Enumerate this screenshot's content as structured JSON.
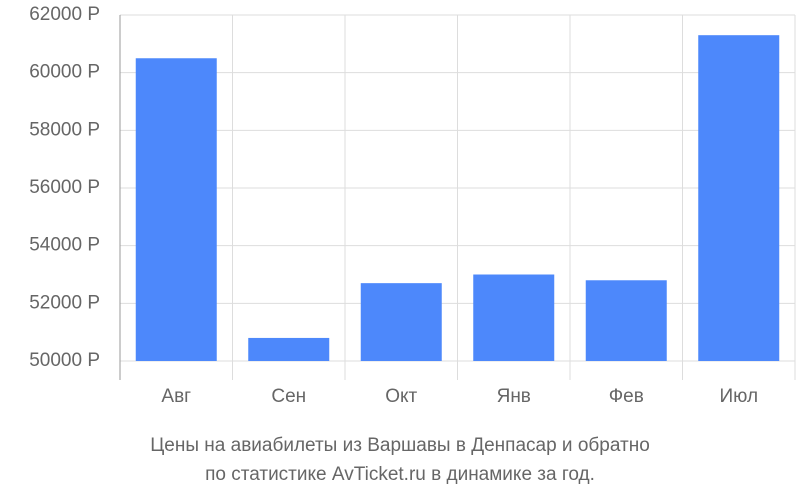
{
  "chart_data": {
    "type": "bar",
    "caption": [
      "Цены на авиабилеты из Варшавы в Денпасар и обратно",
      "по статистике AvTicket.ru в динамике за год."
    ],
    "categories": [
      "Авг",
      "Сен",
      "Окт",
      "Янв",
      "Фев",
      "Июл"
    ],
    "values": [
      60500,
      50800,
      52700,
      53000,
      52800,
      61300
    ],
    "color": "#4d88fb",
    "ylim": [
      50000,
      62000
    ],
    "yticks": [
      {
        "value": 50000,
        "label": "50000 Р"
      },
      {
        "value": 52000,
        "label": "52000 Р"
      },
      {
        "value": 54000,
        "label": "54000 Р"
      },
      {
        "value": 56000,
        "label": "56000 Р"
      },
      {
        "value": 58000,
        "label": "58000 Р"
      },
      {
        "value": 60000,
        "label": "60000 Р"
      },
      {
        "value": 62000,
        "label": "62000 Р"
      }
    ],
    "grid": true
  }
}
